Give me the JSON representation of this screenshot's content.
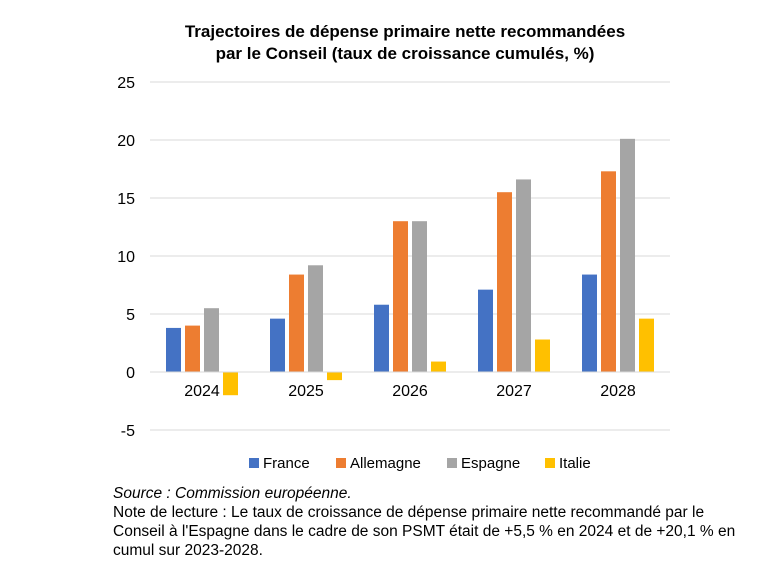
{
  "chart_data": {
    "type": "bar",
    "title_lines": [
      "Trajectoires de dépense primaire nette recommandées",
      "par le Conseil (taux de croissance cumulés, %)"
    ],
    "categories": [
      "2024",
      "2025",
      "2026",
      "2027",
      "2028"
    ],
    "series": [
      {
        "name": "France",
        "color": "#4472C4",
        "values": [
          3.8,
          4.6,
          5.8,
          7.1,
          8.4
        ]
      },
      {
        "name": "Allemagne",
        "color": "#ED7D31",
        "values": [
          4.0,
          8.4,
          13.0,
          15.5,
          17.3
        ]
      },
      {
        "name": "Espagne",
        "color": "#A5A5A5",
        "values": [
          5.5,
          9.2,
          13.0,
          16.6,
          20.1
        ]
      },
      {
        "name": "Italie",
        "color": "#FFC000",
        "values": [
          -2.0,
          -0.7,
          0.9,
          2.8,
          4.6
        ]
      }
    ],
    "ylim": [
      -5,
      25
    ],
    "yticks": [
      -5,
      0,
      5,
      10,
      15,
      20,
      25
    ],
    "grid": true,
    "legend_position": "bottom"
  },
  "notes": {
    "source": "Source : Commission européenne.",
    "reading_note": "Note de lecture : Le taux de croissance de dépense primaire nette recommandé par le Conseil à l'Espagne dans le cadre de son PSMT était de +5,5 % en 2024 et de +20,1 % en cumul sur 2023-2028."
  }
}
